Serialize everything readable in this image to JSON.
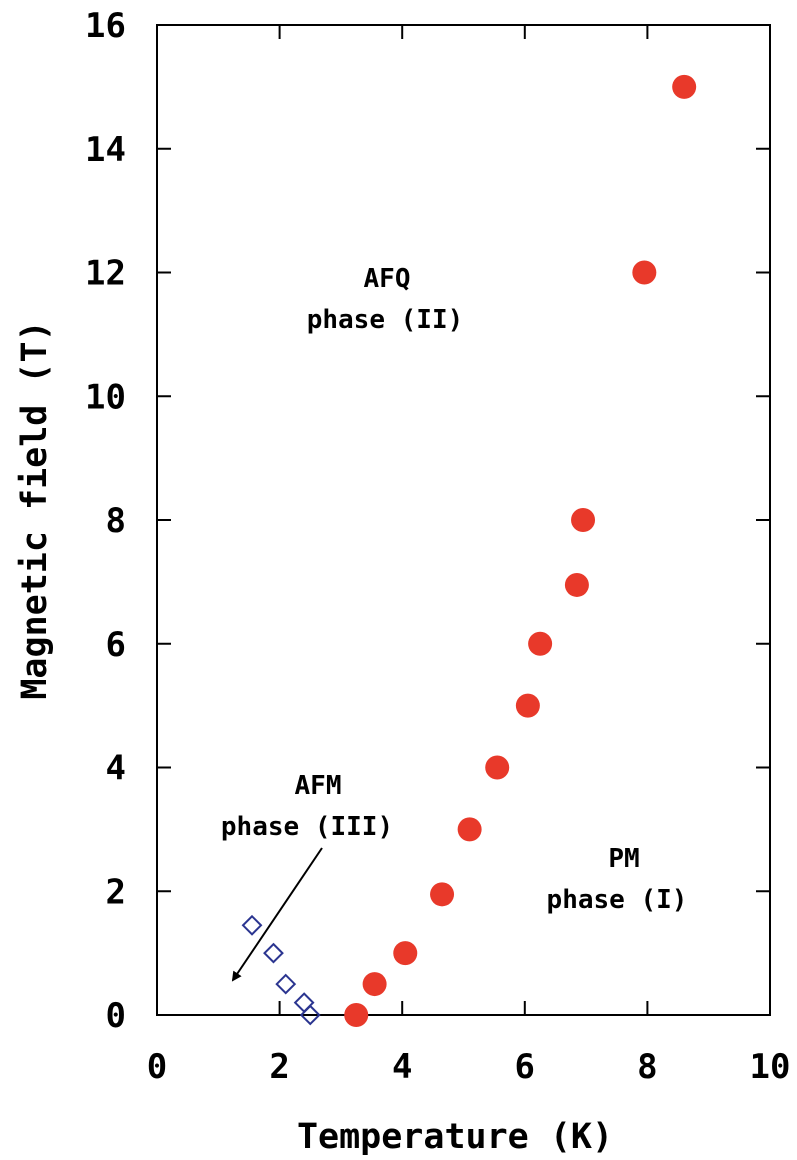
{
  "chart_data": {
    "type": "scatter",
    "title": "",
    "xlabel": "Temperature (K)",
    "ylabel": "Magnetic field (T)",
    "xlim": [
      0,
      10
    ],
    "ylim": [
      0,
      16
    ],
    "xticks": [
      0,
      2,
      4,
      6,
      8,
      10
    ],
    "yticks": [
      0,
      2,
      4,
      6,
      8,
      10,
      12,
      14,
      16
    ],
    "grid": false,
    "series": [
      {
        "marker": "filled-circle",
        "color": "#e8392a",
        "points": [
          {
            "x": 3.25,
            "y": 0.0
          },
          {
            "x": 3.55,
            "y": 0.5
          },
          {
            "x": 4.05,
            "y": 1.0
          },
          {
            "x": 4.65,
            "y": 1.95
          },
          {
            "x": 5.1,
            "y": 3.0
          },
          {
            "x": 5.55,
            "y": 4.0
          },
          {
            "x": 6.05,
            "y": 5.0
          },
          {
            "x": 6.25,
            "y": 6.0
          },
          {
            "x": 6.85,
            "y": 6.95
          },
          {
            "x": 6.95,
            "y": 8.0
          },
          {
            "x": 7.95,
            "y": 12.0
          },
          {
            "x": 8.6,
            "y": 15.0
          }
        ]
      },
      {
        "marker": "open-diamond",
        "color": "#2b3590",
        "points": [
          {
            "x": 1.55,
            "y": 1.45
          },
          {
            "x": 1.9,
            "y": 1.0
          },
          {
            "x": 2.1,
            "y": 0.5
          },
          {
            "x": 2.4,
            "y": 0.2
          },
          {
            "x": 2.5,
            "y": 0.0
          }
        ]
      }
    ],
    "annotations": [
      {
        "line1": "AFQ",
        "line2": "phase (II)"
      },
      {
        "line1": "AFM",
        "line2": "phase (III)"
      },
      {
        "line1": "PM",
        "line2": "phase (I)"
      }
    ]
  }
}
